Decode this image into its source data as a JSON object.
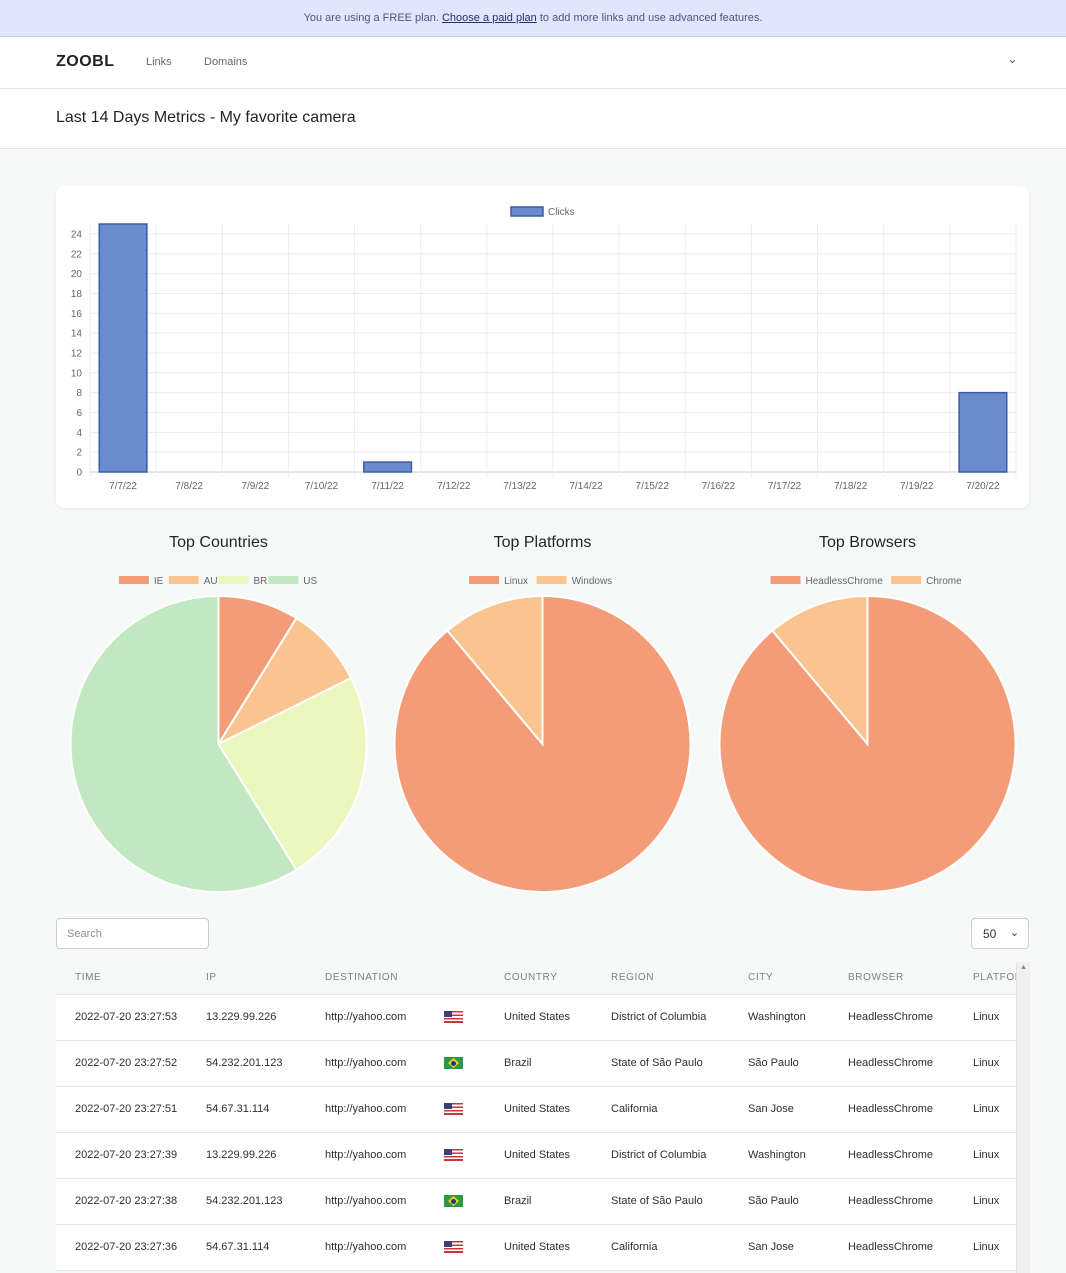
{
  "banner": {
    "prefix": "You are using a FREE plan.",
    "link": "Choose a paid plan",
    "suffix": "to add more links and use advanced features."
  },
  "nav": {
    "brand": "ZOOBL",
    "links": [
      "Links",
      "Domains"
    ],
    "menu_icon": "chevron-down-icon"
  },
  "page": {
    "title": "Last 14 Days Metrics - My favorite camera"
  },
  "colors": {
    "bar": "#6a8bcc",
    "bar_border": "#3b5ba8",
    "pie": [
      "#f49b78",
      "#f9c490",
      "#ebf7bc",
      "#c1e8c0"
    ]
  },
  "chart_data": [
    {
      "type": "bar",
      "legend": [
        "Clicks"
      ],
      "categories": [
        "7/7/22",
        "7/8/22",
        "7/9/22",
        "7/10/22",
        "7/11/22",
        "7/12/22",
        "7/13/22",
        "7/14/22",
        "7/15/22",
        "7/16/22",
        "7/17/22",
        "7/18/22",
        "7/19/22",
        "7/20/22"
      ],
      "values": [
        25,
        0,
        0,
        0,
        1,
        0,
        0,
        0,
        0,
        0,
        0,
        0,
        0,
        8
      ],
      "y_ticks": [
        0,
        2,
        4,
        6,
        8,
        10,
        12,
        14,
        16,
        18,
        20,
        22,
        24
      ],
      "ylim": [
        0,
        25
      ],
      "grid": true
    },
    {
      "type": "pie",
      "title": "Top Countries",
      "labels": [
        "IE",
        "AU",
        "BR",
        "US"
      ],
      "values": [
        3,
        3,
        8,
        20
      ]
    },
    {
      "type": "pie",
      "title": "Top Platforms",
      "labels": [
        "Linux",
        "Windows"
      ],
      "values": [
        8,
        1
      ]
    },
    {
      "type": "pie",
      "title": "Top Browsers",
      "labels": [
        "HeadlessChrome",
        "Chrome"
      ],
      "values": [
        8,
        1
      ]
    }
  ],
  "controls": {
    "search_placeholder": "Search",
    "page_size": "50"
  },
  "table": {
    "columns": [
      "TIME",
      "IP",
      "DESTINATION",
      "",
      "COUNTRY",
      "REGION",
      "CITY",
      "BROWSER",
      "PLATFORM"
    ],
    "rows": [
      [
        "2022-07-20 23:27:53",
        "13.229.99.226",
        "http://yahoo.com",
        "us",
        "United States",
        "District of Columbia",
        "Washington",
        "HeadlessChrome",
        "Linux"
      ],
      [
        "2022-07-20 23:27:52",
        "54.232.201.123",
        "http://yahoo.com",
        "br",
        "Brazil",
        "State of São Paulo",
        "São Paulo",
        "HeadlessChrome",
        "Linux"
      ],
      [
        "2022-07-20 23:27:51",
        "54.67.31.114",
        "http://yahoo.com",
        "us",
        "United States",
        "California",
        "San Jose",
        "HeadlessChrome",
        "Linux"
      ],
      [
        "2022-07-20 23:27:39",
        "13.229.99.226",
        "http://yahoo.com",
        "us",
        "United States",
        "District of Columbia",
        "Washington",
        "HeadlessChrome",
        "Linux"
      ],
      [
        "2022-07-20 23:27:38",
        "54.232.201.123",
        "http://yahoo.com",
        "br",
        "Brazil",
        "State of São Paulo",
        "São Paulo",
        "HeadlessChrome",
        "Linux"
      ],
      [
        "2022-07-20 23:27:36",
        "54.67.31.114",
        "http://yahoo.com",
        "us",
        "United States",
        "California",
        "San Jose",
        "HeadlessChrome",
        "Linux"
      ]
    ]
  }
}
